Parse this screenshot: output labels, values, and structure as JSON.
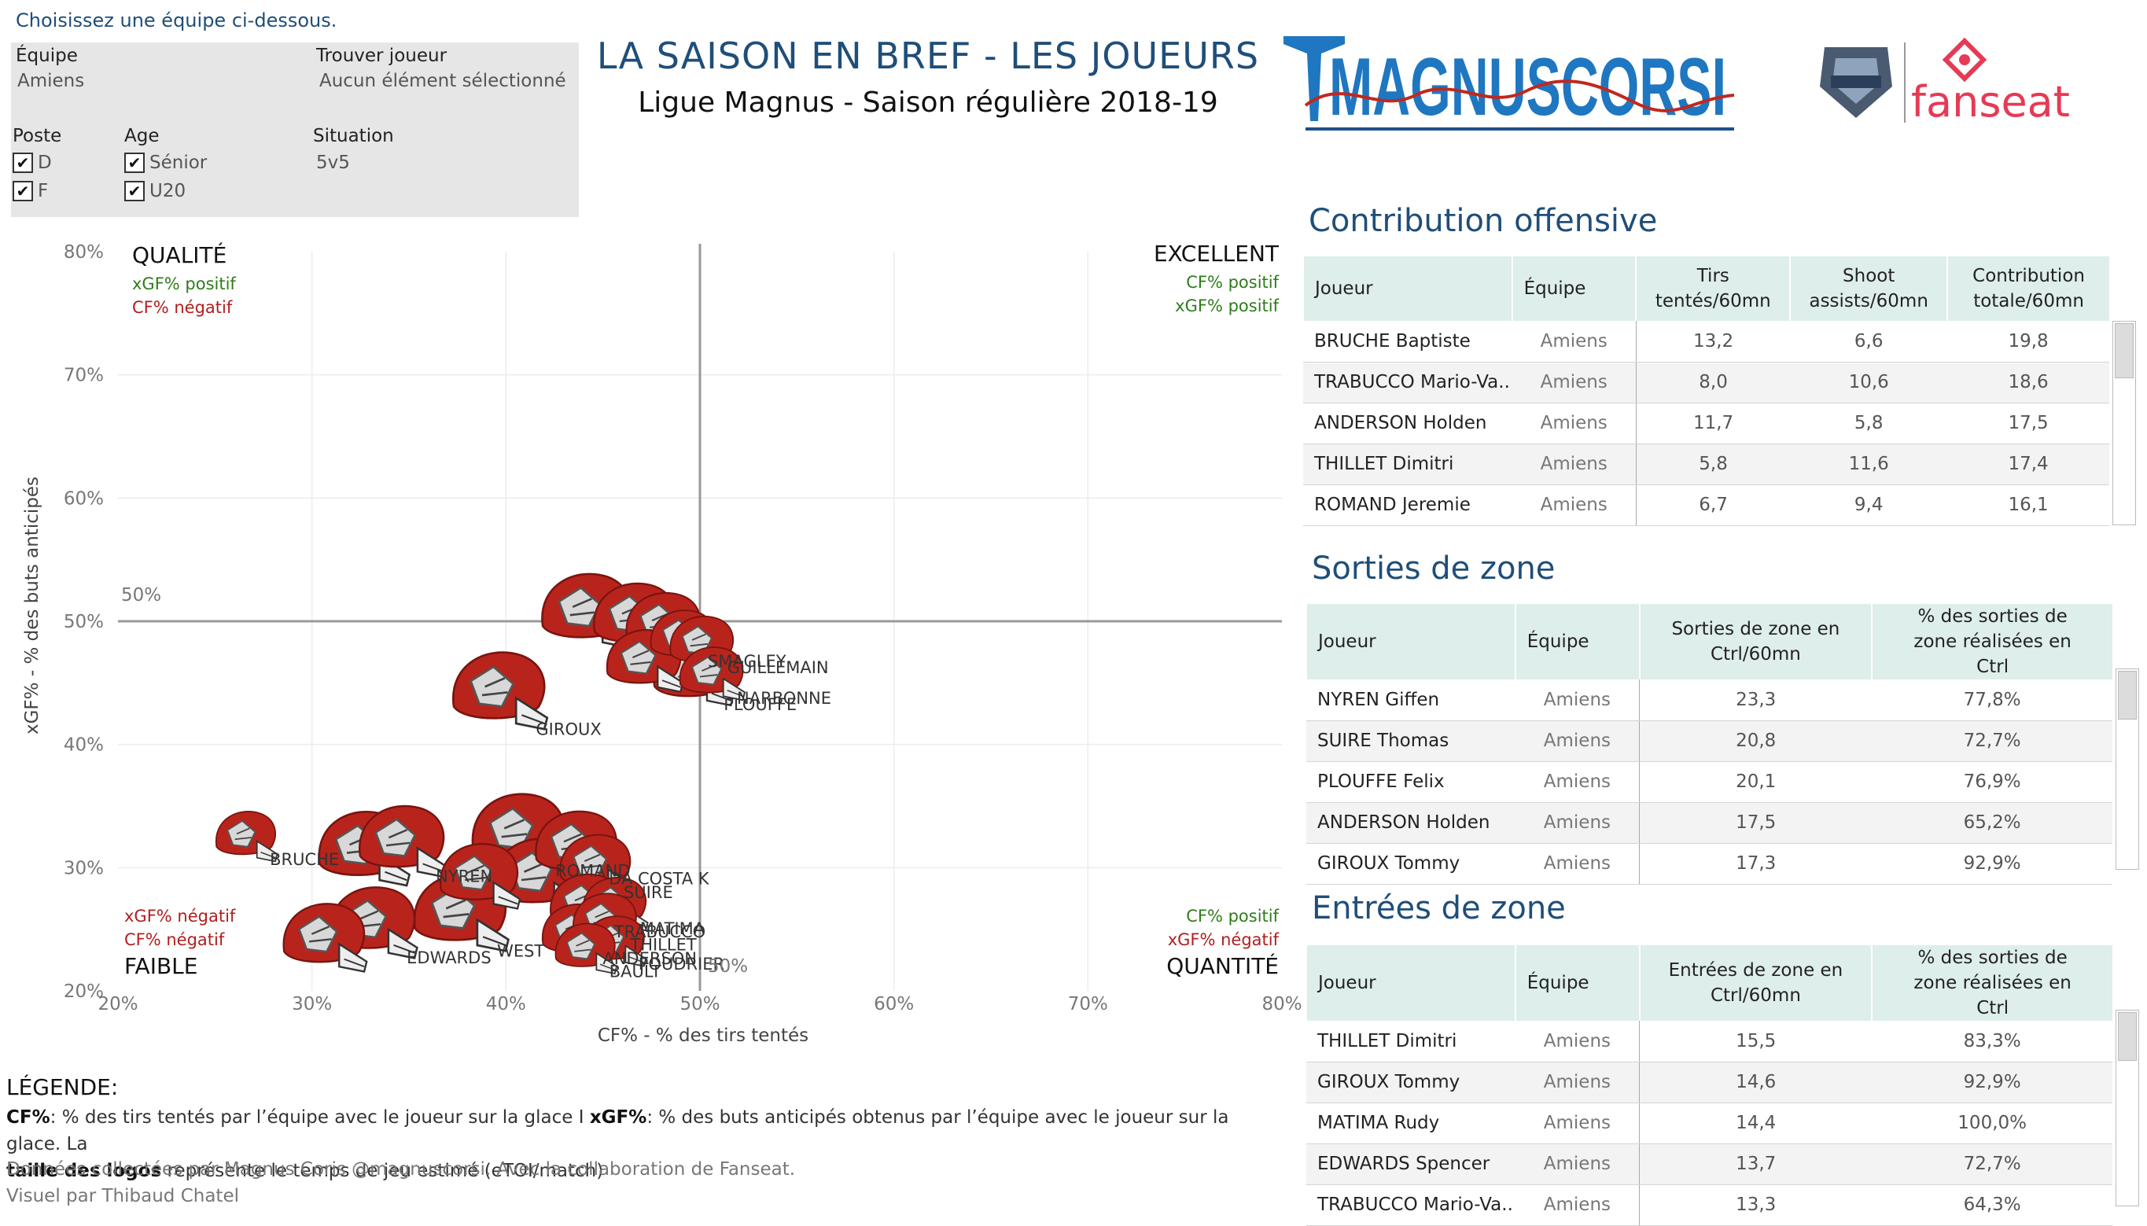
{
  "header": {
    "instruction": "Choisissez une équipe ci-dessous.",
    "title": "LA SAISON EN BREF - LES JOUEURS",
    "subtitle": "Ligue Magnus - Saison régulière 2018-19"
  },
  "filters": {
    "team_label": "Équipe",
    "team_value": "Amiens",
    "player_label": "Trouver joueur",
    "player_value": "Aucun élément sélectionné",
    "position_label": "Poste",
    "position_options": [
      "D",
      "F"
    ],
    "age_label": "Age",
    "age_options": [
      "Sénior",
      "U20"
    ],
    "situation_label": "Situation",
    "situation_value": "5v5"
  },
  "logos": {
    "magnus_text": "MAGNUSCORSI",
    "fanseat_text": "fanseat"
  },
  "chart_data": {
    "type": "scatter",
    "xlabel": "CF% - % des tirs tentés",
    "ylabel": "xGF% - % des buts anticipés",
    "xlim": [
      20,
      80
    ],
    "ylim": [
      20,
      80
    ],
    "xticks": [
      "20%",
      "30%",
      "40%",
      "50%",
      "60%",
      "70%",
      "80%"
    ],
    "yticks": [
      "20%",
      "30%",
      "40%",
      "50%",
      "60%",
      "70%",
      "80%"
    ],
    "ref_x_label": "50%",
    "ref_y_label": "50%",
    "quadrants": {
      "top_left": {
        "title": "QUALITÉ",
        "line1": "xGF% positif",
        "line2": "CF% négatif"
      },
      "top_right": {
        "title": "EXCELLENT",
        "line1": "CF% positif",
        "line2": "xGF% positif"
      },
      "bottom_left": {
        "title": "FAIBLE",
        "line1": "xGF% négatif",
        "line2": "CF% négatif"
      },
      "bottom_right": {
        "title": "QUANTITÉ",
        "line1": "CF% positif",
        "line2": "xGF% négatif"
      }
    },
    "points": [
      {
        "name": "BRUCHE",
        "x": 26.5,
        "y": 32.3,
        "size": 0.55
      },
      {
        "name": "NYREN",
        "x": 34.5,
        "y": 31.8,
        "size": 0.9
      },
      {
        "name": "",
        "x": 32.5,
        "y": 31.2,
        "size": 0.95
      },
      {
        "name": "ROMAND",
        "x": 40.5,
        "y": 32.5,
        "size": 1.0
      },
      {
        "name": "DA COSTA K",
        "x": 43.5,
        "y": 31.5,
        "size": 0.85
      },
      {
        "name": "SUIRE",
        "x": 44.5,
        "y": 30.0,
        "size": 0.7
      },
      {
        "name": "",
        "x": 38.5,
        "y": 29.0,
        "size": 0.8
      },
      {
        "name": "",
        "x": 41.5,
        "y": 29.0,
        "size": 0.95
      },
      {
        "name": "TRABUCCO",
        "x": 44.0,
        "y": 26.8,
        "size": 0.7
      },
      {
        "name": "MATIMA",
        "x": 45.5,
        "y": 26.8,
        "size": 0.6
      },
      {
        "name": "THILLET",
        "x": 45.0,
        "y": 25.5,
        "size": 0.6
      },
      {
        "name": "ANDERSON",
        "x": 43.5,
        "y": 24.5,
        "size": 0.65
      },
      {
        "name": "POUDRIER",
        "x": 45.5,
        "y": 23.8,
        "size": 0.55
      },
      {
        "name": "BAULT",
        "x": 44.0,
        "y": 23.2,
        "size": 0.55
      },
      {
        "name": "WEST",
        "x": 37.5,
        "y": 26.0,
        "size": 1.0
      },
      {
        "name": "EDWARDS",
        "x": 33.0,
        "y": 25.2,
        "size": 0.9
      },
      {
        "name": "",
        "x": 30.5,
        "y": 24.0,
        "size": 0.85
      },
      {
        "name": "GIROUX",
        "x": 39.5,
        "y": 44.0,
        "size": 1.0
      },
      {
        "name": "",
        "x": 44.0,
        "y": 50.5,
        "size": 0.95
      },
      {
        "name": "",
        "x": 46.5,
        "y": 50.0,
        "size": 0.85
      },
      {
        "name": "",
        "x": 48.0,
        "y": 49.5,
        "size": 0.75
      },
      {
        "name": "SMAGLEY",
        "x": 49.0,
        "y": 48.5,
        "size": 0.6
      },
      {
        "name": "GUILLEMAIN",
        "x": 50.0,
        "y": 48.0,
        "size": 0.6
      },
      {
        "name": "",
        "x": 47.0,
        "y": 46.5,
        "size": 0.75
      },
      {
        "name": "NARBONNE",
        "x": 50.5,
        "y": 45.5,
        "size": 0.6
      },
      {
        "name": "PLOUFFE",
        "x": 49.5,
        "y": 45.5,
        "size": 0.8
      }
    ]
  },
  "legend": {
    "title": "LÉGENDE:",
    "cf_key": "CF%",
    "cf_text": ": % des tirs tentés par l’équipe avec le joueur sur la glace I",
    "xgf_key": "xGF%",
    "xgf_text": ": % des buts anticipés obtenus par l’équipe avec le joueur sur la glace. La",
    "size_key": "taille des logos",
    "size_text": " représente le temps de jeu estimé (eTOI/match)",
    "credit1": "Données collectées par Magnus Coris @magnuscorsi. Avec la collaboration de Fanseat.",
    "credit2": "Visuel par Thibaud Chatel"
  },
  "offense": {
    "title": "Contribution offensive",
    "headers": [
      "Joueur",
      "Équipe",
      "Tirs tentés/60mn",
      "Shoot assists/60mn",
      "Contribution totale/60mn"
    ],
    "rows": [
      [
        "BRUCHE Baptiste",
        "Amiens",
        "13,2",
        "6,6",
        "19,8"
      ],
      [
        "TRABUCCO Mario-Va..",
        "Amiens",
        "8,0",
        "10,6",
        "18,6"
      ],
      [
        "ANDERSON Holden",
        "Amiens",
        "11,7",
        "5,8",
        "17,5"
      ],
      [
        "THILLET Dimitri",
        "Amiens",
        "5,8",
        "11,6",
        "17,4"
      ],
      [
        "ROMAND Jeremie",
        "Amiens",
        "6,7",
        "9,4",
        "16,1"
      ]
    ]
  },
  "exits": {
    "title": "Sorties de zone",
    "headers": [
      "Joueur",
      "Équipe",
      "Sorties de zone en Ctrl/60mn",
      "% des sorties de zone réalisées en Ctrl"
    ],
    "rows": [
      [
        "NYREN Giffen",
        "Amiens",
        "23,3",
        "77,8%"
      ],
      [
        "SUIRE Thomas",
        "Amiens",
        "20,8",
        "72,7%"
      ],
      [
        "PLOUFFE Felix",
        "Amiens",
        "20,1",
        "76,9%"
      ],
      [
        "ANDERSON Holden",
        "Amiens",
        "17,5",
        "65,2%"
      ],
      [
        "GIROUX Tommy",
        "Amiens",
        "17,3",
        "92,9%"
      ]
    ]
  },
  "entries": {
    "title": "Entrées de zone",
    "headers": [
      "Joueur",
      "Équipe",
      "Entrées de zone en Ctrl/60mn",
      "% des sorties de zone réalisées en Ctrl"
    ],
    "rows": [
      [
        "THILLET Dimitri",
        "Amiens",
        "15,5",
        "83,3%"
      ],
      [
        "GIROUX Tommy",
        "Amiens",
        "14,6",
        "92,9%"
      ],
      [
        "MATIMA Rudy",
        "Amiens",
        "14,4",
        "100,0%"
      ],
      [
        "EDWARDS Spencer",
        "Amiens",
        "13,7",
        "72,7%"
      ],
      [
        "TRABUCCO Mario-Va..",
        "Amiens",
        "13,3",
        "64,3%"
      ]
    ]
  },
  "colors": {
    "title_blue": "#1f4e79",
    "positive_green": "#2e7d1a",
    "negative_red": "#b21e1e",
    "table_header": "#deeeea",
    "logo_red": "#c0281e"
  }
}
